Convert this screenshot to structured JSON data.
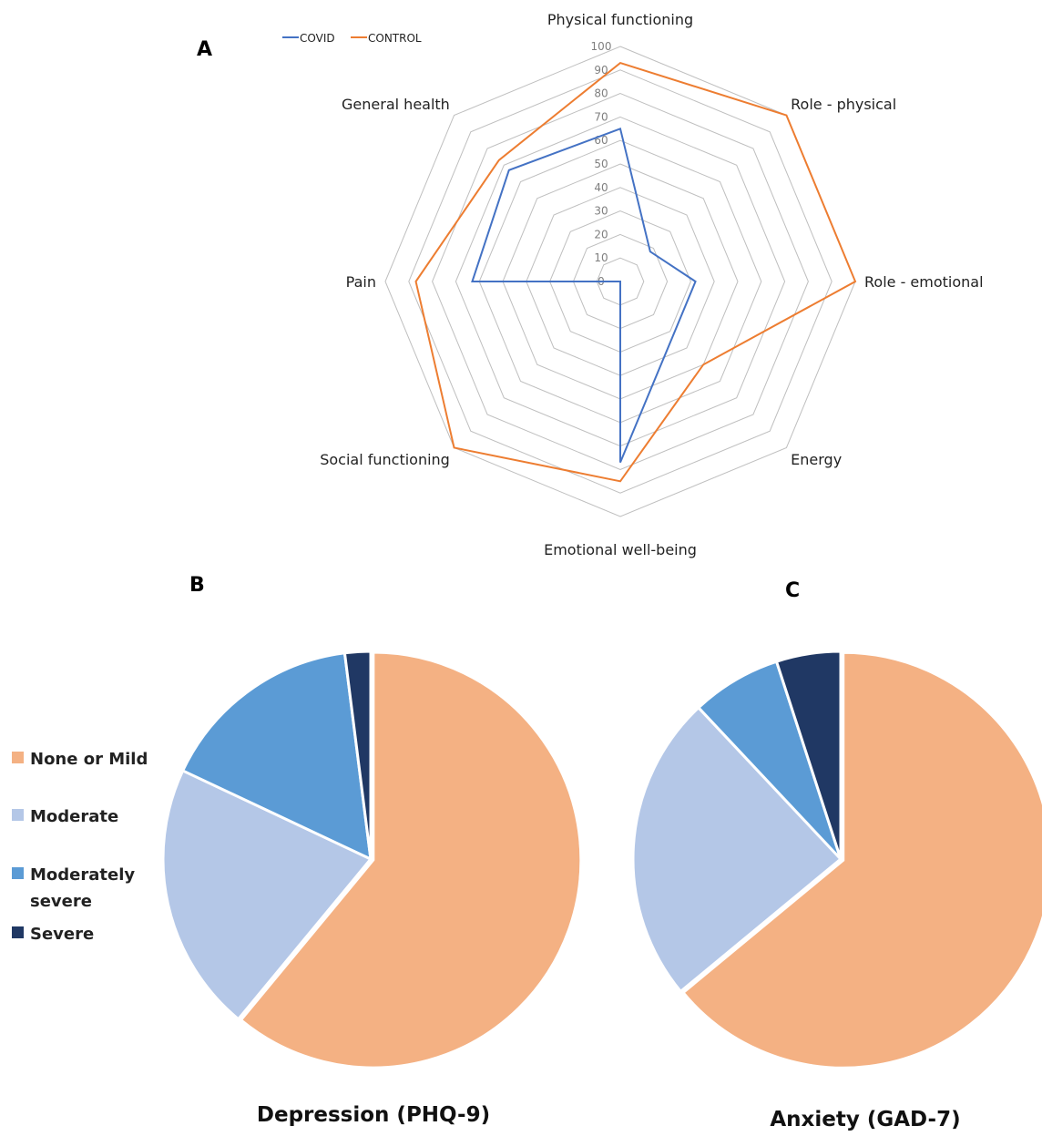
{
  "panels": {
    "a": "A",
    "b": "B",
    "c": "C"
  },
  "colors": {
    "covid": "#4472c4",
    "control": "#ed7d31",
    "grid": "#bfbfbf",
    "none_or_mild": "#f4b183",
    "moderate": "#b4c7e7",
    "moderately_severe": "#5b9bd5",
    "severe": "#203864"
  },
  "chart_data": [
    {
      "type": "radar",
      "panel": "A",
      "axes": [
        "Physical functioning",
        "Role - physical",
        "Role - emotional",
        "Energy",
        "Emotional well-being",
        "Social functioning",
        "Pain",
        "General health"
      ],
      "ticks": [
        "0",
        "10",
        "20",
        "30",
        "40",
        "50",
        "60",
        "70",
        "80",
        "90",
        "100"
      ],
      "range": [
        0,
        100
      ],
      "series": [
        {
          "name": "COVID",
          "values": [
            65,
            18,
            32,
            32,
            77,
            0,
            63,
            67
          ]
        },
        {
          "name": "CONTROL",
          "values": [
            93,
            100,
            100,
            50,
            85,
            100,
            87,
            73
          ]
        }
      ],
      "legend": "top-left"
    },
    {
      "type": "pie",
      "panel": "B",
      "title": "Depression (PHQ-9)",
      "categories": [
        "None or Mild",
        "Moderate",
        "Moderately severe",
        "Severe"
      ],
      "values": [
        61,
        21,
        16,
        2
      ]
    },
    {
      "type": "pie",
      "panel": "C",
      "title": "Anxiety (GAD-7)",
      "categories": [
        "None or Mild",
        "Moderate",
        "Moderately severe",
        "Severe"
      ],
      "values": [
        64,
        24,
        7,
        5
      ]
    }
  ],
  "pie_legend": [
    "None or Mild",
    "Moderate",
    "Moderately",
    "severe",
    "Severe"
  ]
}
